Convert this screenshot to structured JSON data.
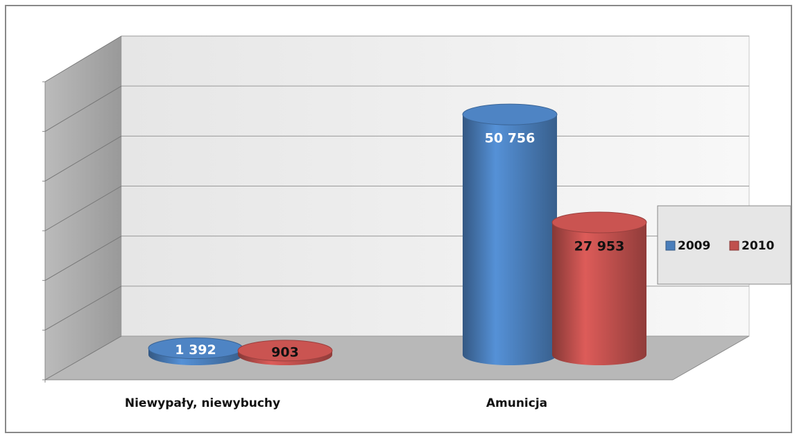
{
  "chart_data": {
    "type": "bar3d",
    "categories": [
      "Niewypały, niewybuchy",
      "Amunicja"
    ],
    "series": [
      {
        "name": "2009",
        "color": "#4a7ebb",
        "values": [
          1392,
          50756
        ],
        "value_labels": [
          "1 392",
          "50 756"
        ]
      },
      {
        "name": "2010",
        "color": "#c0504d",
        "values": [
          903,
          27953
        ],
        "value_labels": [
          "903",
          "27 953"
        ]
      }
    ],
    "ylim": [
      0,
      60000
    ],
    "yticks": [
      0,
      10000,
      20000,
      30000,
      40000,
      50000,
      60000
    ],
    "grid": true,
    "legend": "right"
  }
}
